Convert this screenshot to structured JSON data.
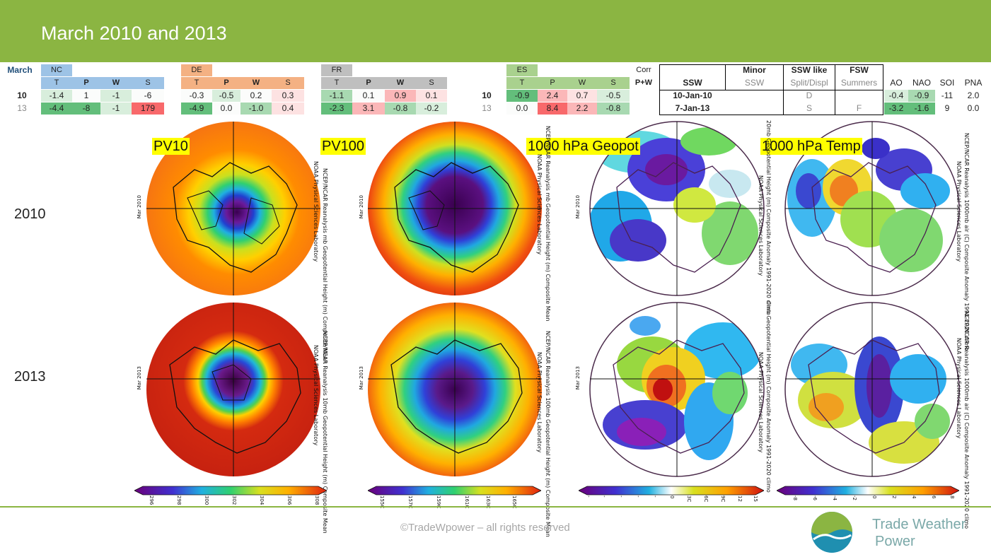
{
  "header": {
    "title": "March 2010 and 2013"
  },
  "table": {
    "month_label": "March",
    "groups": [
      "NC",
      "DE",
      "FR",
      "ES"
    ],
    "sub_headers": [
      "T",
      "P",
      "W",
      "S"
    ],
    "corr_label": "Corr",
    "corr_sub": "P+W",
    "rows": [
      {
        "year": "10",
        "nc": [
          "-1.4",
          "1",
          "-1",
          "-6"
        ],
        "de": [
          "-0.3",
          "-0.5",
          "0.2",
          "0.3"
        ],
        "fr": [
          "-1.1",
          "0.1",
          "0.9",
          "0.1"
        ],
        "es_year": "10",
        "es": [
          "-0.9",
          "2.4",
          "0.7",
          "-0.5"
        ]
      },
      {
        "year": "13",
        "nc": [
          "-4.4",
          "-8",
          "-1",
          "179"
        ],
        "de": [
          "-4.9",
          "0.0",
          "-1.0",
          "0.4"
        ],
        "fr": [
          "-2.3",
          "3.1",
          "-0.8",
          "-0.2"
        ],
        "es_year": "13",
        "es": [
          "0.0",
          "8.4",
          "2.2",
          "-0.8"
        ]
      }
    ],
    "ssw_headers": {
      "ssw": "SSW",
      "minor": "Minor",
      "minor_sub": "SSW",
      "ssw_like": "SSW like",
      "ssw_like_sub": "Split/Displ",
      "fsw": "FSW",
      "fsw_sub": "Summers"
    },
    "index_headers": [
      "AO",
      "NAO",
      "SOI",
      "PNA"
    ],
    "ssw_rows": [
      {
        "date": "10-Jan-10",
        "minor": "",
        "split": "D",
        "fsw": "",
        "indices": [
          "-0.4",
          "-0.9",
          "-11",
          "2.0"
        ]
      },
      {
        "date": "7-Jan-13",
        "minor": "",
        "split": "S",
        "fsw": "F",
        "indices": [
          "-3.2",
          "-1.6",
          "9",
          "0.0"
        ]
      }
    ]
  },
  "maps": {
    "years": [
      "2010",
      "2013"
    ],
    "tags": [
      "PV10",
      "PV100",
      "1000 hPa Geopot",
      "1000 hPa Temp"
    ],
    "side_labels": {
      "left_2010": "Mar 2010",
      "left_2013": "Mar 2013",
      "pv10_2010": "NCEP/NCAR Reanalysis  mb Geopotential Height (m) Composite Mean",
      "pv10_2010_b": "NOAA Physical Sciences Laboratory",
      "pv10_2013": "NCEP/NCAR Reanalysis  10mb Geopotential Height (m) Composite Mean",
      "pv10_2013_b": "NOAA Physical Sciences Laboratory",
      "pv100_2010": "NCEP/NCAR Reanalysis  mb Geopotential Height (m) Composite Mean",
      "pv100_2010_b": "NOAA Physical Sciences Laboratory",
      "pv100_2013": "NCEP/NCAR Reanalysis  100mb Geopotential Height (m) Composite Mean",
      "pv100_2013_b": "NOAA Physical Sciences Laboratory",
      "geo_2010": "20mb Geopotential Height (m) Composite Anomaly 1991-2020 climo",
      "geo_2010_b": "NOAA Physical Sciences Laboratory",
      "geo_2013": "0mb Geopotential Height (m) Composite Anomaly 1991-2020 climo",
      "geo_2013_b": "NOAA Physical Sciences Laboratory",
      "temp_2010": "NCEP/NCAR Reanalysis  1000mb air (C) Composite Anomaly 1991-2020 climo",
      "temp_2010_b": "NOAA Physical Sciences Laboratory",
      "temp_2013": "NCEP/NCAR Reanalysis  1000mb air (C) Composite Anomaly 1991-2020 climo",
      "temp_2013_b": "NOAA Physical Sciences Laboratory"
    },
    "colorbars": [
      {
        "ticks": [
          "296",
          "298",
          "300",
          "302",
          "304",
          "306",
          "308"
        ]
      },
      {
        "ticks": [
          "155C",
          "157C",
          "159C",
          "161C",
          "163C",
          "165C"
        ]
      },
      {
        "ticks": [
          "-",
          "-",
          "-",
          "-",
          "-",
          "0",
          "3C",
          "6C",
          "9C",
          "12",
          "15"
        ]
      },
      {
        "ticks": [
          "-8",
          "-6",
          "-4",
          "-2",
          "0",
          "2",
          "4",
          "6",
          "8"
        ]
      }
    ]
  },
  "footer": {
    "copyright": "©TradeWpower – all rights reserved",
    "brand_line1": "Trade Weather",
    "brand_line2": "Power"
  },
  "colors": {
    "accent": "#8bb542",
    "brand": "#7aa8a8"
  }
}
